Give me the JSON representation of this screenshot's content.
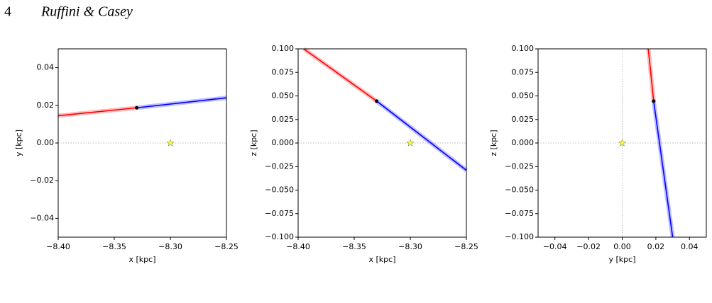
{
  "header": {
    "page": "4",
    "authors": "Ruffini & Casey"
  },
  "chart_data": [
    {
      "type": "line",
      "xlabel": "x [kpc]",
      "ylabel": "y [kpc]",
      "xlim": [
        -8.4,
        -8.25
      ],
      "ylim": [
        -0.05,
        0.05
      ],
      "xticks": [
        {
          "value": -8.4,
          "label": "−8.40"
        },
        {
          "value": -8.35,
          "label": "−8.35"
        },
        {
          "value": -8.3,
          "label": "−8.30"
        },
        {
          "value": -8.25,
          "label": "−8.25"
        }
      ],
      "yticks": [
        {
          "value": -0.04,
          "label": "−0.04"
        },
        {
          "value": -0.02,
          "label": "−0.02"
        },
        {
          "value": 0,
          "label": "0.00"
        },
        {
          "value": 0.02,
          "label": "0.02"
        },
        {
          "value": 0.04,
          "label": "0.04"
        }
      ],
      "hline": 0,
      "series": [
        {
          "color": "#ff0000",
          "x": [
            -8.4,
            -8.33
          ],
          "values": [
            0.0145,
            0.0187
          ]
        },
        {
          "color": "#0000ff",
          "x": [
            -8.33,
            -8.25
          ],
          "values": [
            0.0187,
            0.024
          ]
        },
        {
          "color": "#000000",
          "marker": "dot",
          "x": [
            -8.33
          ],
          "values": [
            0.0187
          ]
        },
        {
          "color": "#ffff33",
          "marker": "star",
          "x": [
            -8.3
          ],
          "values": [
            0
          ]
        }
      ]
    },
    {
      "type": "line",
      "xlabel": "x [kpc]",
      "ylabel": "z [kpc]",
      "xlim": [
        -8.4,
        -8.25
      ],
      "ylim": [
        -0.1,
        0.1
      ],
      "xticks": [
        {
          "value": -8.4,
          "label": "−8.40"
        },
        {
          "value": -8.35,
          "label": "−8.35"
        },
        {
          "value": -8.3,
          "label": "−8.30"
        },
        {
          "value": -8.25,
          "label": "−8.25"
        }
      ],
      "yticks": [
        {
          "value": -0.1,
          "label": "−0.100"
        },
        {
          "value": -0.075,
          "label": "−0.075"
        },
        {
          "value": -0.05,
          "label": "−0.050"
        },
        {
          "value": -0.025,
          "label": "−0.025"
        },
        {
          "value": 0,
          "label": "0.000"
        },
        {
          "value": 0.025,
          "label": "0.025"
        },
        {
          "value": 0.05,
          "label": "0.050"
        },
        {
          "value": 0.075,
          "label": "0.075"
        },
        {
          "value": 0.1,
          "label": "0.100"
        }
      ],
      "hline": 0,
      "series": [
        {
          "color": "#ff0000",
          "x": [
            -8.395,
            -8.33
          ],
          "values": [
            0.1,
            0.0445
          ]
        },
        {
          "color": "#0000ff",
          "x": [
            -8.33,
            -8.25
          ],
          "values": [
            0.0445,
            -0.029
          ]
        },
        {
          "color": "#000000",
          "marker": "dot",
          "x": [
            -8.33
          ],
          "values": [
            0.0445
          ]
        },
        {
          "color": "#ffff33",
          "marker": "star",
          "x": [
            -8.3
          ],
          "values": [
            0
          ]
        }
      ]
    },
    {
      "type": "line",
      "xlabel": "y [kpc]",
      "ylabel": "z [kpc]",
      "xlim": [
        -0.05,
        0.05
      ],
      "ylim": [
        -0.1,
        0.1
      ],
      "xticks": [
        {
          "value": -0.04,
          "label": "−0.04"
        },
        {
          "value": -0.02,
          "label": "−0.02"
        },
        {
          "value": 0,
          "label": "0.00"
        },
        {
          "value": 0.02,
          "label": "0.02"
        },
        {
          "value": 0.04,
          "label": "0.04"
        }
      ],
      "yticks": [
        {
          "value": -0.1,
          "label": "−0.100"
        },
        {
          "value": -0.075,
          "label": "−0.075"
        },
        {
          "value": -0.05,
          "label": "−0.050"
        },
        {
          "value": -0.025,
          "label": "−0.025"
        },
        {
          "value": 0,
          "label": "0.000"
        },
        {
          "value": 0.025,
          "label": "0.025"
        },
        {
          "value": 0.05,
          "label": "0.050"
        },
        {
          "value": 0.075,
          "label": "0.075"
        },
        {
          "value": 0.1,
          "label": "0.100"
        }
      ],
      "hline": 0,
      "vline": 0,
      "series": [
        {
          "color": "#ff0000",
          "x": [
            0.0155,
            0.0187
          ],
          "values": [
            0.1,
            0.0445
          ]
        },
        {
          "color": "#0000ff",
          "x": [
            0.0187,
            0.03
          ],
          "values": [
            0.0445,
            -0.1
          ]
        },
        {
          "color": "#000000",
          "marker": "dot",
          "x": [
            0.0187
          ],
          "values": [
            0.0445
          ]
        },
        {
          "color": "#ffff33",
          "marker": "star",
          "x": [
            0
          ],
          "values": [
            0
          ]
        }
      ]
    }
  ]
}
